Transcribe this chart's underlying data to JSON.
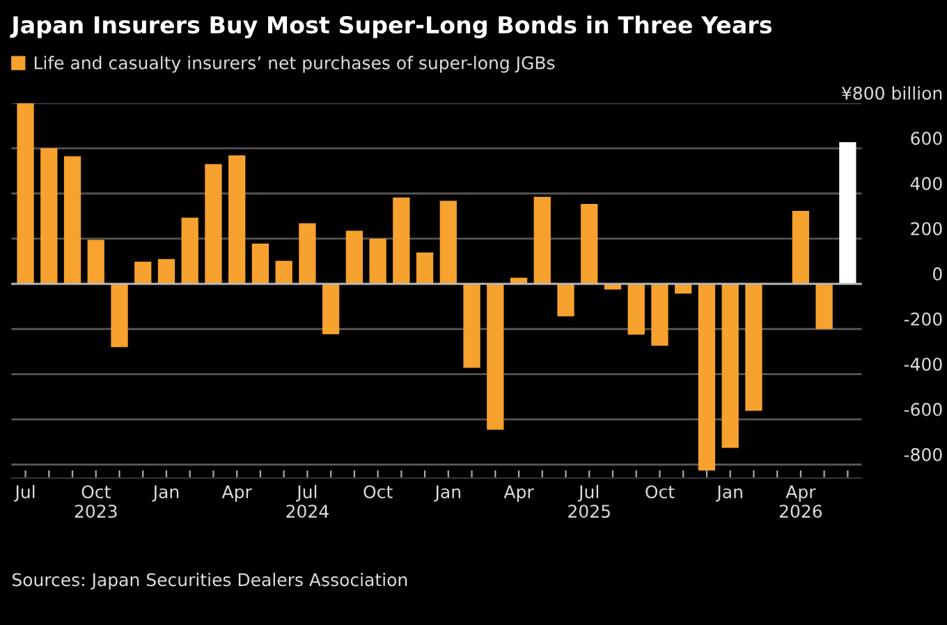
{
  "chart_data": {
    "type": "bar",
    "title": "Japan Insurers Buy Most Super-Long Bonds in Three Years",
    "categories": [
      "Jul",
      null,
      null,
      "Oct\n2023",
      null,
      null,
      "Jan",
      null,
      null,
      "Apr",
      null,
      null,
      "Jul\n2024",
      null,
      null,
      "Oct",
      null,
      null,
      "Jan",
      null,
      null,
      "Apr",
      null,
      null,
      "Jul\n2025",
      null,
      null,
      "Oct",
      null,
      null,
      "Jan",
      null,
      null,
      "Apr\n2026",
      null,
      null
    ],
    "series": [
      {
        "name": "Life and casualty insurers’ net purchases of super-long JGBs",
        "color": "#f7a12e",
        "values": [
          800,
          600,
          565,
          195,
          -280,
          98,
          110,
          293,
          530,
          569,
          178,
          102,
          268,
          -223,
          235,
          200,
          382,
          139,
          368,
          -372,
          -646,
          27,
          385,
          -144,
          354,
          -25,
          -225,
          -274,
          -43,
          -826,
          -726,
          -562,
          0,
          323,
          -200,
          627
        ],
        "colors": [
          "#f7a12e",
          "#f7a12e",
          "#f7a12e",
          "#f7a12e",
          "#f7a12e",
          "#f7a12e",
          "#f7a12e",
          "#f7a12e",
          "#f7a12e",
          "#f7a12e",
          "#f7a12e",
          "#f7a12e",
          "#f7a12e",
          "#f7a12e",
          "#f7a12e",
          "#f7a12e",
          "#f7a12e",
          "#f7a12e",
          "#f7a12e",
          "#f7a12e",
          "#f7a12e",
          "#f7a12e",
          "#f7a12e",
          "#f7a12e",
          "#f7a12e",
          "#f7a12e",
          "#f7a12e",
          "#f7a12e",
          "#f7a12e",
          "#f7a12e",
          "#f7a12e",
          "#f7a12e",
          "#f7a12e",
          "#f7a12e",
          "#f7a12e",
          "#ffffff"
        ]
      }
    ],
    "ylim": [
      -860,
      800
    ],
    "yticks": [
      {
        "value": 800,
        "label": "¥800 billion"
      },
      600,
      400,
      200,
      0,
      -200,
      -400,
      -600,
      -800
    ],
    "grid": "y",
    "legend": "top left",
    "annotations": [
      "Sources: Japan Securities Dealers Association"
    ]
  }
}
